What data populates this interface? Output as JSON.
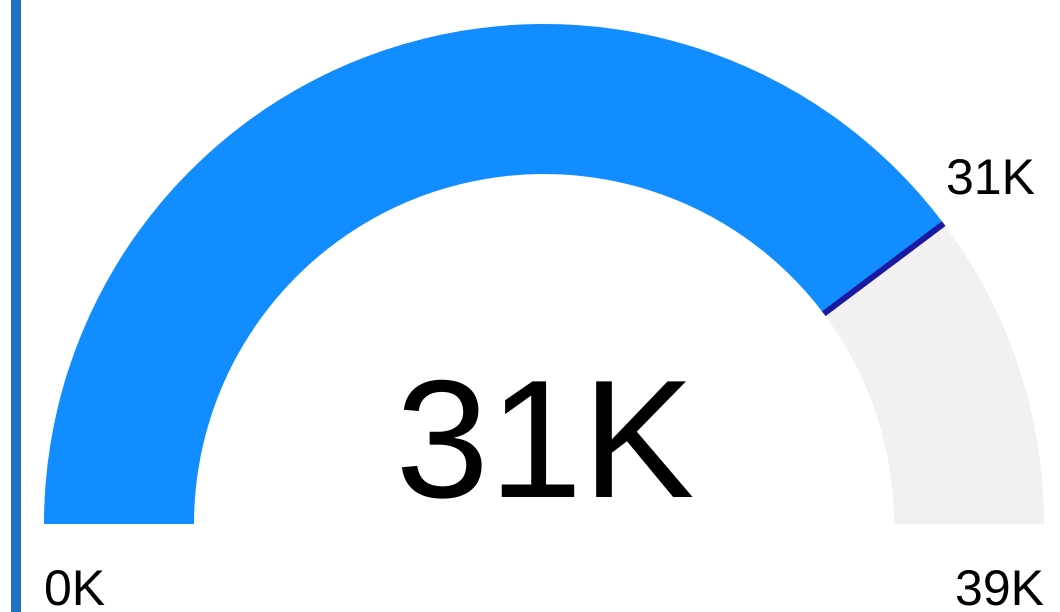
{
  "colors": {
    "accent_bar": "#1f6fc6",
    "value_arc": "#118dff",
    "track_arc": "#f2f1f0",
    "target_marker": "#1a1aa0",
    "text": "#000000"
  },
  "chart_data": {
    "type": "gauge",
    "min": 0,
    "max": 39000,
    "value": 31000,
    "target": 31000,
    "labels": {
      "value": "31K",
      "min": "0K",
      "max": "39K",
      "target": "31K"
    }
  }
}
